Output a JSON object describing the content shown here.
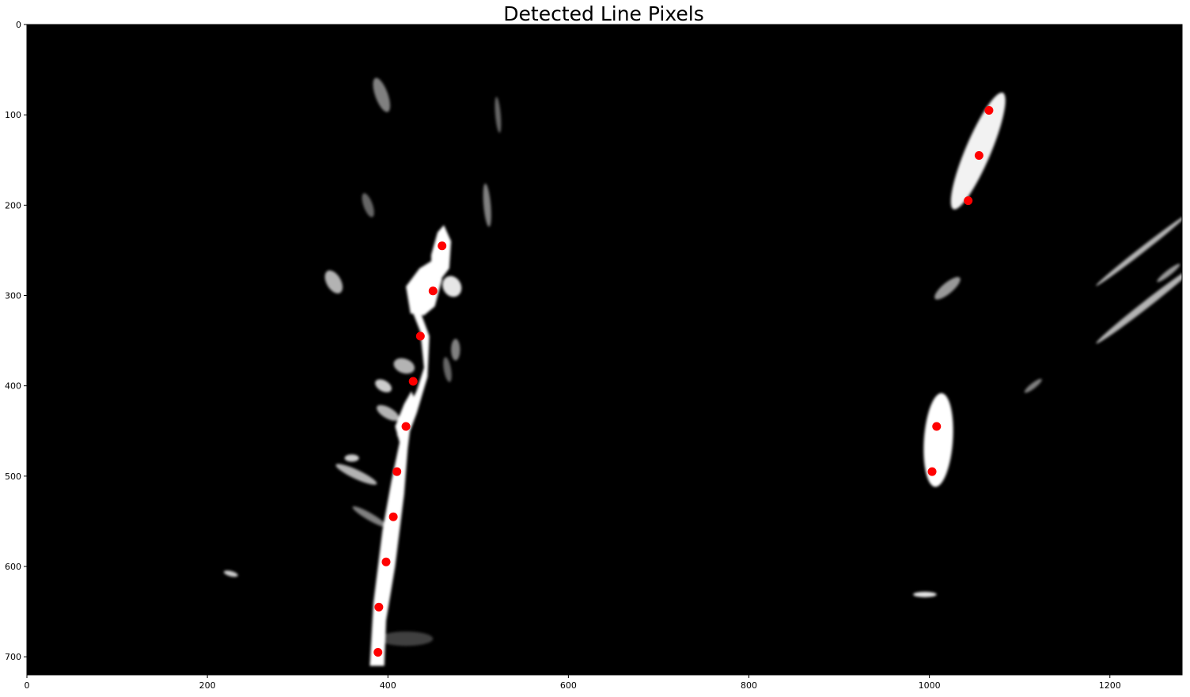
{
  "chart_data": {
    "type": "scatter",
    "title": "Detected Line Pixels",
    "xlabel": "",
    "ylabel": "",
    "xlim": [
      0,
      1280
    ],
    "ylim": [
      720,
      0
    ],
    "x_ticks": [
      0,
      200,
      400,
      600,
      800,
      1000,
      1200
    ],
    "y_ticks": [
      0,
      100,
      200,
      300,
      400,
      500,
      600,
      700
    ],
    "grid": false,
    "background": "binary image: white detected lane-line pixels on black",
    "marker_color": "#ff0000",
    "series": [
      {
        "points": [
          {
            "x": 460,
            "y": 245
          },
          {
            "x": 450,
            "y": 295
          },
          {
            "x": 436,
            "y": 345
          },
          {
            "x": 428,
            "y": 395
          },
          {
            "x": 420,
            "y": 445
          },
          {
            "x": 410,
            "y": 495
          },
          {
            "x": 406,
            "y": 545
          },
          {
            "x": 398,
            "y": 595
          },
          {
            "x": 390,
            "y": 645
          },
          {
            "x": 389,
            "y": 695
          }
        ]
      },
      {
        "points": [
          {
            "x": 1066,
            "y": 95
          },
          {
            "x": 1055,
            "y": 145
          },
          {
            "x": 1043,
            "y": 195
          },
          {
            "x": 1008,
            "y": 445
          },
          {
            "x": 1003,
            "y": 495
          }
        ]
      }
    ]
  }
}
